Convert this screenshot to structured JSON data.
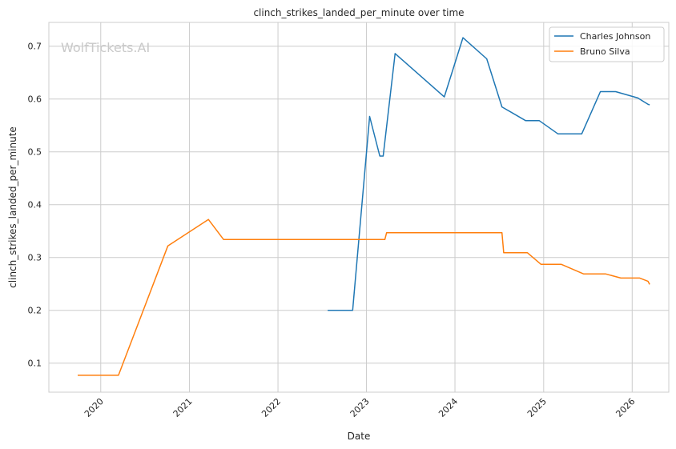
{
  "chart_data": {
    "type": "line",
    "title": "clinch_strikes_landed_per_minute over time",
    "xlabel": "Date",
    "ylabel": "clinch_strikes_landed_per_minute",
    "watermark": "WolfTickets.AI",
    "xlim": [
      "2019-06-01",
      "2026-06-01"
    ],
    "ylim": [
      0.045,
      0.745
    ],
    "x_ticks": [
      "2020",
      "2021",
      "2022",
      "2023",
      "2024",
      "2025",
      "2026"
    ],
    "y_ticks": [
      "0.1",
      "0.2",
      "0.3",
      "0.4",
      "0.5",
      "0.6",
      "0.7"
    ],
    "grid": true,
    "legend_position": "top-right",
    "series": [
      {
        "name": "Charles Johnson",
        "color": "#1f77b4",
        "points": [
          [
            "2022-07-25",
            0.2
          ],
          [
            "2022-11-05",
            0.2
          ],
          [
            "2023-01-14",
            0.567
          ],
          [
            "2023-02-25",
            0.492
          ],
          [
            "2023-03-11",
            0.492
          ],
          [
            "2023-04-29",
            0.686
          ],
          [
            "2023-11-18",
            0.604
          ],
          [
            "2024-02-03",
            0.716
          ],
          [
            "2024-05-11",
            0.676
          ],
          [
            "2024-07-13",
            0.585
          ],
          [
            "2024-10-19",
            0.559
          ],
          [
            "2024-12-14",
            0.559
          ],
          [
            "2025-03-01",
            0.534
          ],
          [
            "2025-06-07",
            0.534
          ],
          [
            "2025-08-23",
            0.614
          ],
          [
            "2025-10-25",
            0.614
          ],
          [
            "2026-01-24",
            0.602
          ],
          [
            "2026-03-07",
            0.59
          ],
          [
            "2026-03-14",
            0.589
          ]
        ]
      },
      {
        "name": "Bruno Silva",
        "color": "#ff7f0e",
        "points": [
          [
            "2019-09-28",
            0.077
          ],
          [
            "2020-03-14",
            0.077
          ],
          [
            "2020-10-04",
            0.322
          ],
          [
            "2021-03-20",
            0.372
          ],
          [
            "2021-05-22",
            0.334
          ],
          [
            "2023-03-18",
            0.334
          ],
          [
            "2023-03-25",
            0.347
          ],
          [
            "2024-07-13",
            0.347
          ],
          [
            "2024-07-20",
            0.309
          ],
          [
            "2024-10-26",
            0.309
          ],
          [
            "2024-12-21",
            0.287
          ],
          [
            "2025-03-15",
            0.287
          ],
          [
            "2025-06-14",
            0.269
          ],
          [
            "2025-09-13",
            0.269
          ],
          [
            "2025-11-15",
            0.261
          ],
          [
            "2026-02-01",
            0.261
          ],
          [
            "2026-03-07",
            0.255
          ],
          [
            "2026-03-14",
            0.249
          ]
        ]
      }
    ]
  }
}
